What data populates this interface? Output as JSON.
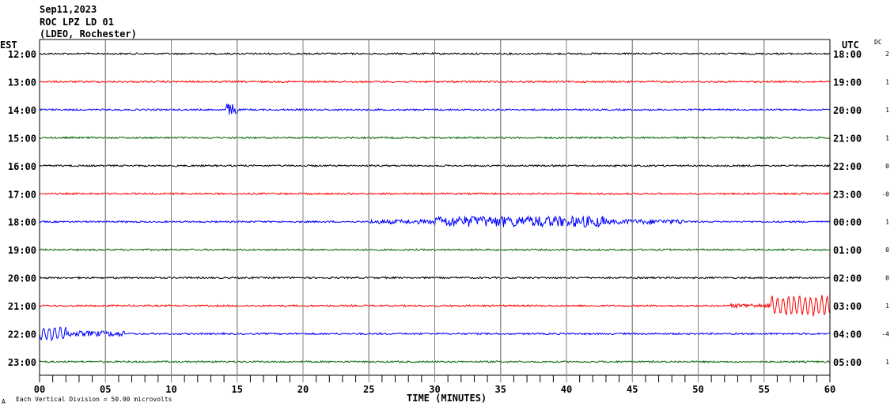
{
  "header": {
    "date": "Sep11,2023",
    "station": "ROC LPZ LD 01",
    "network": "(LDEO, Rochester)"
  },
  "chart_data": {
    "type": "line",
    "subtype": "helicorder seismogram",
    "xlabel": "TIME (MINUTES)",
    "xlim": [
      0,
      60
    ],
    "x_ticks": [
      "00",
      "05",
      "10",
      "15",
      "20",
      "25",
      "30",
      "35",
      "40",
      "45",
      "50",
      "55",
      "60"
    ],
    "left_axis_title": "EST",
    "right_axis_title": "UTC",
    "dc_title": "DC",
    "scale_note": "Each Vertical Division =    50.00 microvolts",
    "corner_mark": "A",
    "grid": true,
    "trace_colors": [
      "#000000",
      "#ff0000",
      "#0000ff",
      "#006400"
    ],
    "rows": [
      {
        "est": "12:00",
        "utc": "18:00",
        "dc": "2",
        "color": "#000000",
        "events": []
      },
      {
        "est": "13:00",
        "utc": "19:00",
        "dc": "1",
        "color": "#ff0000",
        "events": []
      },
      {
        "est": "14:00",
        "utc": "20:00",
        "dc": "1",
        "color": "#0000ff",
        "events": [
          {
            "start": 14.1,
            "end": 15.0,
            "amplitude": 0.45
          }
        ]
      },
      {
        "est": "15:00",
        "utc": "21:00",
        "dc": "1",
        "color": "#006400",
        "events": []
      },
      {
        "est": "16:00",
        "utc": "22:00",
        "dc": "0",
        "color": "#000000",
        "events": []
      },
      {
        "est": "17:00",
        "utc": "23:00",
        "dc": "-0",
        "color": "#ff0000",
        "events": []
      },
      {
        "est": "18:00",
        "utc": "00:00",
        "dc": "1",
        "color": "#0000ff",
        "events": [
          {
            "start": 25,
            "end": 30,
            "amplitude": 0.15
          },
          {
            "start": 30,
            "end": 43,
            "amplitude": 0.4
          },
          {
            "start": 43,
            "end": 49,
            "amplitude": 0.18
          }
        ]
      },
      {
        "est": "19:00",
        "utc": "01:00",
        "dc": "0",
        "color": "#006400",
        "events": []
      },
      {
        "est": "20:00",
        "utc": "02:00",
        "dc": "0",
        "color": "#000000",
        "events": []
      },
      {
        "est": "21:00",
        "utc": "03:00",
        "dc": "1",
        "color": "#ff0000",
        "events": [
          {
            "start": 52.5,
            "end": 55.5,
            "amplitude": 0.15
          },
          {
            "start": 55.5,
            "end": 60,
            "amplitude": 0.75
          }
        ]
      },
      {
        "est": "22:00",
        "utc": "04:00",
        "dc": "-4",
        "color": "#0000ff",
        "events": [
          {
            "start": 0,
            "end": 2,
            "amplitude": 0.55
          },
          {
            "start": 2,
            "end": 6.5,
            "amplitude": 0.2
          }
        ]
      },
      {
        "est": "23:00",
        "utc": "05:00",
        "dc": "1",
        "color": "#006400",
        "events": []
      }
    ]
  }
}
